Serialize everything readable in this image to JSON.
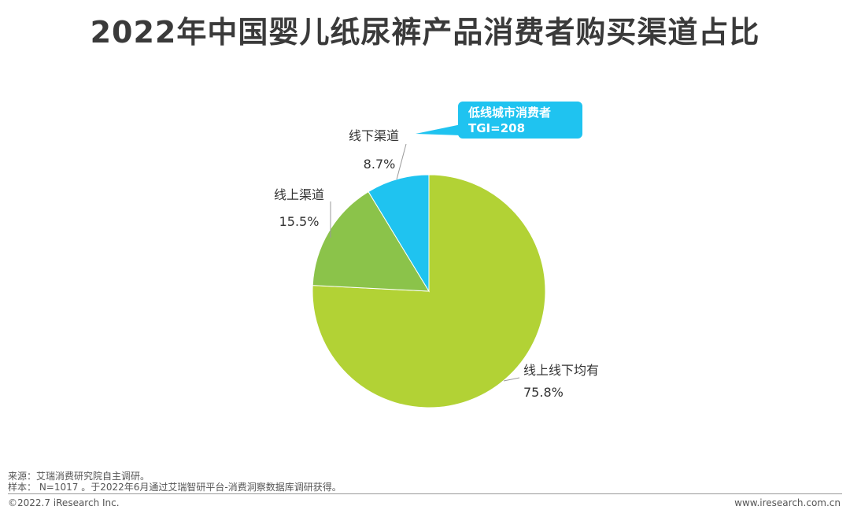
{
  "title": "2022年中国婴儿纸尿裤产品消费者购买渠道占比",
  "chart_data": {
    "type": "pie",
    "title": "2022年中国婴儿纸尿裤产品消费者购买渠道占比",
    "slices": [
      {
        "name": "线上线下均有",
        "value": 75.8,
        "label": "75.8%",
        "color": "#b2d235"
      },
      {
        "name": "线上渠道",
        "value": 15.5,
        "label": "15.5%",
        "color": "#8bc34a"
      },
      {
        "name": "线下渠道",
        "value": 8.7,
        "label": "8.7%",
        "color": "#1fc3f0"
      }
    ],
    "annotation": {
      "line1": "低线城市消费者",
      "line2": "TGI=208",
      "color": "#1fc3f0"
    }
  },
  "footer": {
    "source": "来源：艾瑞消费研究院自主调研。",
    "sample": "样本： N=1017 。于2022年6月通过艾瑞智研平台-消费洞察数据库调研获得。",
    "copyright": "©2022.7 iResearch Inc.",
    "website": "www.iresearch.com.cn"
  }
}
